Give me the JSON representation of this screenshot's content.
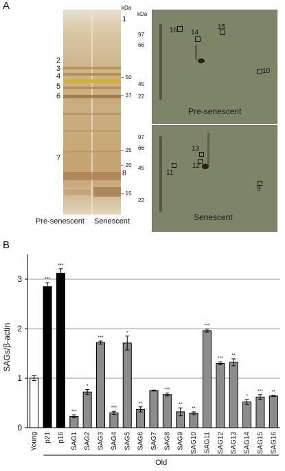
{
  "panel_a": {
    "letter": "A",
    "gel": {
      "lane_labels": [
        "Pre-senescent",
        "Senescent"
      ],
      "kda_header": "kDa",
      "markers": [
        "50",
        "37",
        "25",
        "20",
        "15"
      ],
      "band_numbers_left": [
        "2",
        "3",
        "4",
        "5",
        "6",
        "7"
      ],
      "band_numbers_right": [
        "1",
        "8"
      ]
    },
    "blots": {
      "kda_header": "kDa",
      "top": {
        "title": "Pre-senescent",
        "markers": [
          "97",
          "66",
          "45",
          "22"
        ],
        "spots": [
          "16",
          "14",
          "15",
          "10"
        ]
      },
      "bottom": {
        "title": "Senescent",
        "markers": [
          "97",
          "66",
          "45",
          "22"
        ],
        "spots": [
          "13",
          "12",
          "11",
          "9"
        ]
      }
    }
  },
  "panel_b": {
    "letter": "B",
    "chart_data": {
      "type": "bar",
      "ylabel": "SAGs/β-actin",
      "ylim": [
        0,
        3.5
      ],
      "yticks": [
        "0",
        "1",
        "2",
        "3"
      ],
      "group_label": "Old",
      "grid": true,
      "categories": [
        "Young",
        "p21",
        "p16",
        "SAG1",
        "SAG2",
        "SAG3",
        "SAG4",
        "SAG5",
        "SAG6",
        "SAG7",
        "SAG8",
        "SAG9",
        "SAG10",
        "SAG11",
        "SAG12",
        "SAG13",
        "SAG14",
        "SAG15",
        "SAG16"
      ],
      "values": [
        1.0,
        2.85,
        3.12,
        0.23,
        0.72,
        1.72,
        0.3,
        1.71,
        0.37,
        0.75,
        0.67,
        0.32,
        0.29,
        1.96,
        1.3,
        1.32,
        0.52,
        0.62,
        0.64
      ],
      "errors": [
        0.05,
        0.08,
        0.09,
        0.03,
        0.05,
        0.03,
        0.03,
        0.14,
        0.05,
        0.01,
        0.03,
        0.08,
        0.03,
        0.03,
        0.03,
        0.07,
        0.05,
        0.05,
        0.01
      ],
      "significance": [
        "",
        "***",
        "***",
        "***",
        "*",
        "***",
        "***",
        "*",
        "**",
        "",
        "***",
        "**",
        "**",
        "***",
        "***",
        "**",
        "*",
        "***",
        "**"
      ],
      "colors": {
        "young": "#ffffff",
        "control": "#000000",
        "sag": "#8c8c8c"
      }
    }
  }
}
